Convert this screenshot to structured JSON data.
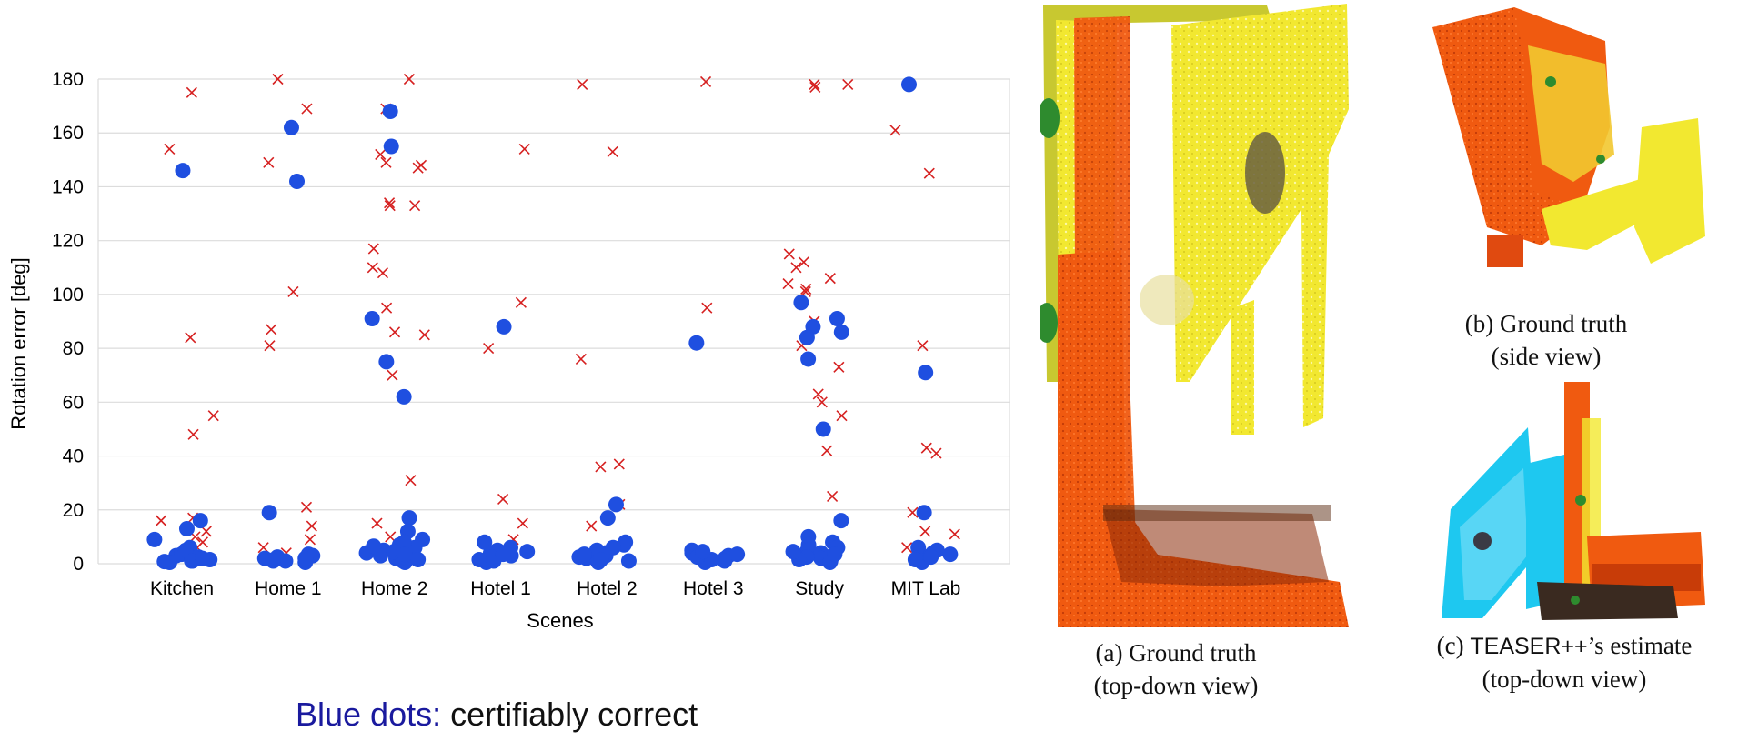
{
  "caption": {
    "highlight": "Blue dots:",
    "rest": " certifiably correct"
  },
  "colors": {
    "certified": "#1f4fe0",
    "uncertified": "#d62020",
    "grid": "#dcdcdc",
    "wall_orange": "#f05a10",
    "surface_yellow": "#f2e830",
    "teaser_cyan": "#1ec8f0",
    "marker_green": "#2e8b2e"
  },
  "chart_data": {
    "type": "scatter",
    "title": "",
    "xlabel": "Scenes",
    "ylabel": "Rotation error [deg]",
    "categories": [
      "Kitchen",
      "Home 1",
      "Home 2",
      "Hotel 1",
      "Hotel 2",
      "Hotel 3",
      "Study",
      "MIT Lab"
    ],
    "ylim": [
      0,
      180
    ],
    "yticks": [
      0,
      20,
      40,
      60,
      80,
      100,
      120,
      140,
      160,
      180
    ],
    "grid": true,
    "legend": "none",
    "series": [
      {
        "marker": "dot",
        "color_key": "certified",
        "points": [
          [
            0,
            146
          ],
          [
            0,
            16
          ],
          [
            0,
            13
          ],
          [
            0,
            9
          ],
          [
            0,
            6
          ],
          [
            0,
            4
          ],
          [
            0,
            3
          ],
          [
            0,
            2
          ],
          [
            0,
            1
          ],
          [
            0,
            0.5
          ],
          [
            0,
            2.5
          ],
          [
            0,
            1.5
          ],
          [
            0,
            3.5
          ],
          [
            0,
            0.8
          ],
          [
            0,
            5
          ],
          [
            0,
            1
          ],
          [
            0,
            2
          ],
          [
            1,
            162
          ],
          [
            1,
            142
          ],
          [
            1,
            19
          ],
          [
            1,
            3
          ],
          [
            1,
            2
          ],
          [
            1,
            1.5
          ],
          [
            1,
            1
          ],
          [
            1,
            0.5
          ],
          [
            1,
            2.5
          ],
          [
            1,
            3.5
          ],
          [
            1,
            1
          ],
          [
            1,
            2
          ],
          [
            2,
            168
          ],
          [
            2,
            155
          ],
          [
            2,
            91
          ],
          [
            2,
            75
          ],
          [
            2,
            62
          ],
          [
            2,
            17
          ],
          [
            2,
            12
          ],
          [
            2,
            9
          ],
          [
            2,
            7
          ],
          [
            2,
            6
          ],
          [
            2,
            5
          ],
          [
            2,
            4
          ],
          [
            2,
            3
          ],
          [
            2,
            2
          ],
          [
            2,
            1
          ],
          [
            2,
            0.5
          ],
          [
            2,
            8
          ],
          [
            2,
            4.5
          ],
          [
            2,
            2.5
          ],
          [
            2,
            1.5
          ],
          [
            2,
            3.5
          ],
          [
            2,
            6.5
          ],
          [
            3,
            88
          ],
          [
            3,
            8
          ],
          [
            3,
            6
          ],
          [
            3,
            5
          ],
          [
            3,
            4
          ],
          [
            3,
            3
          ],
          [
            3,
            2
          ],
          [
            3,
            1
          ],
          [
            3,
            0.5
          ],
          [
            3,
            2.5
          ],
          [
            3,
            1.5
          ],
          [
            3,
            3.5
          ],
          [
            3,
            4.5
          ],
          [
            4,
            22
          ],
          [
            4,
            17
          ],
          [
            4,
            8
          ],
          [
            4,
            7
          ],
          [
            4,
            5
          ],
          [
            4,
            4
          ],
          [
            4,
            3
          ],
          [
            4,
            2
          ],
          [
            4,
            1
          ],
          [
            4,
            0.5
          ],
          [
            4,
            2.5
          ],
          [
            4,
            6
          ],
          [
            4,
            1.5
          ],
          [
            4,
            3.5
          ],
          [
            5,
            82
          ],
          [
            5,
            5
          ],
          [
            5,
            4
          ],
          [
            5,
            3
          ],
          [
            5,
            2
          ],
          [
            5,
            1
          ],
          [
            5,
            0.5
          ],
          [
            5,
            2.5
          ],
          [
            5,
            1.5
          ],
          [
            5,
            3.5
          ],
          [
            5,
            4.5
          ],
          [
            6,
            97
          ],
          [
            6,
            91
          ],
          [
            6,
            88
          ],
          [
            6,
            86
          ],
          [
            6,
            84
          ],
          [
            6,
            76
          ],
          [
            6,
            50
          ],
          [
            6,
            16
          ],
          [
            6,
            10
          ],
          [
            6,
            8
          ],
          [
            6,
            7
          ],
          [
            6,
            6
          ],
          [
            6,
            5
          ],
          [
            6,
            4
          ],
          [
            6,
            3
          ],
          [
            6,
            2
          ],
          [
            6,
            1
          ],
          [
            6,
            0.5
          ],
          [
            6,
            2.5
          ],
          [
            6,
            1.5
          ],
          [
            6,
            3.5
          ],
          [
            6,
            4.5
          ],
          [
            7,
            178
          ],
          [
            7,
            71
          ],
          [
            7,
            19
          ],
          [
            7,
            6
          ],
          [
            7,
            5
          ],
          [
            7,
            4
          ],
          [
            7,
            3
          ],
          [
            7,
            2
          ],
          [
            7,
            1
          ],
          [
            7,
            0.5
          ],
          [
            7,
            2.5
          ],
          [
            7,
            1.5
          ],
          [
            7,
            3.5
          ]
        ]
      },
      {
        "marker": "x",
        "color_key": "uncertified",
        "points": [
          [
            0,
            175
          ],
          [
            0,
            154
          ],
          [
            0,
            84
          ],
          [
            0,
            55
          ],
          [
            0,
            48
          ],
          [
            0,
            17
          ],
          [
            0,
            16
          ],
          [
            0,
            12
          ],
          [
            0,
            10
          ],
          [
            0,
            8
          ],
          [
            0,
            6
          ],
          [
            1,
            180
          ],
          [
            1,
            169
          ],
          [
            1,
            149
          ],
          [
            1,
            101
          ],
          [
            1,
            87
          ],
          [
            1,
            81
          ],
          [
            1,
            21
          ],
          [
            1,
            14
          ],
          [
            1,
            9
          ],
          [
            1,
            6
          ],
          [
            1,
            4
          ],
          [
            2,
            180
          ],
          [
            2,
            169
          ],
          [
            2,
            152
          ],
          [
            2,
            149
          ],
          [
            2,
            148
          ],
          [
            2,
            147
          ],
          [
            2,
            134
          ],
          [
            2,
            133
          ],
          [
            2,
            133
          ],
          [
            2,
            117
          ],
          [
            2,
            110
          ],
          [
            2,
            108
          ],
          [
            2,
            95
          ],
          [
            2,
            86
          ],
          [
            2,
            85
          ],
          [
            2,
            70
          ],
          [
            2,
            31
          ],
          [
            2,
            15
          ],
          [
            2,
            10
          ],
          [
            3,
            154
          ],
          [
            3,
            97
          ],
          [
            3,
            80
          ],
          [
            3,
            24
          ],
          [
            3,
            15
          ],
          [
            3,
            9
          ],
          [
            4,
            178
          ],
          [
            4,
            153
          ],
          [
            4,
            76
          ],
          [
            4,
            37
          ],
          [
            4,
            36
          ],
          [
            4,
            22
          ],
          [
            4,
            14
          ],
          [
            5,
            179
          ],
          [
            5,
            95
          ],
          [
            6,
            178
          ],
          [
            6,
            178
          ],
          [
            6,
            177
          ],
          [
            6,
            115
          ],
          [
            6,
            112
          ],
          [
            6,
            110
          ],
          [
            6,
            106
          ],
          [
            6,
            104
          ],
          [
            6,
            102
          ],
          [
            6,
            101
          ],
          [
            6,
            90
          ],
          [
            6,
            81
          ],
          [
            6,
            73
          ],
          [
            6,
            63
          ],
          [
            6,
            60
          ],
          [
            6,
            55
          ],
          [
            6,
            42
          ],
          [
            6,
            25
          ],
          [
            7,
            161
          ],
          [
            7,
            145
          ],
          [
            7,
            81
          ],
          [
            7,
            43
          ],
          [
            7,
            41
          ],
          [
            7,
            19
          ],
          [
            7,
            12
          ],
          [
            7,
            11
          ],
          [
            7,
            6
          ]
        ]
      }
    ]
  },
  "panels": {
    "a": {
      "line1": "(a) Ground truth",
      "line2": "(top-down view)"
    },
    "b": {
      "line1": "(b) Ground truth",
      "line2": "(side view)"
    },
    "c": {
      "prefix": "(c) ",
      "mono": "TEASER++",
      "suffix": "’s estimate",
      "line2": "(top-down view)"
    }
  }
}
